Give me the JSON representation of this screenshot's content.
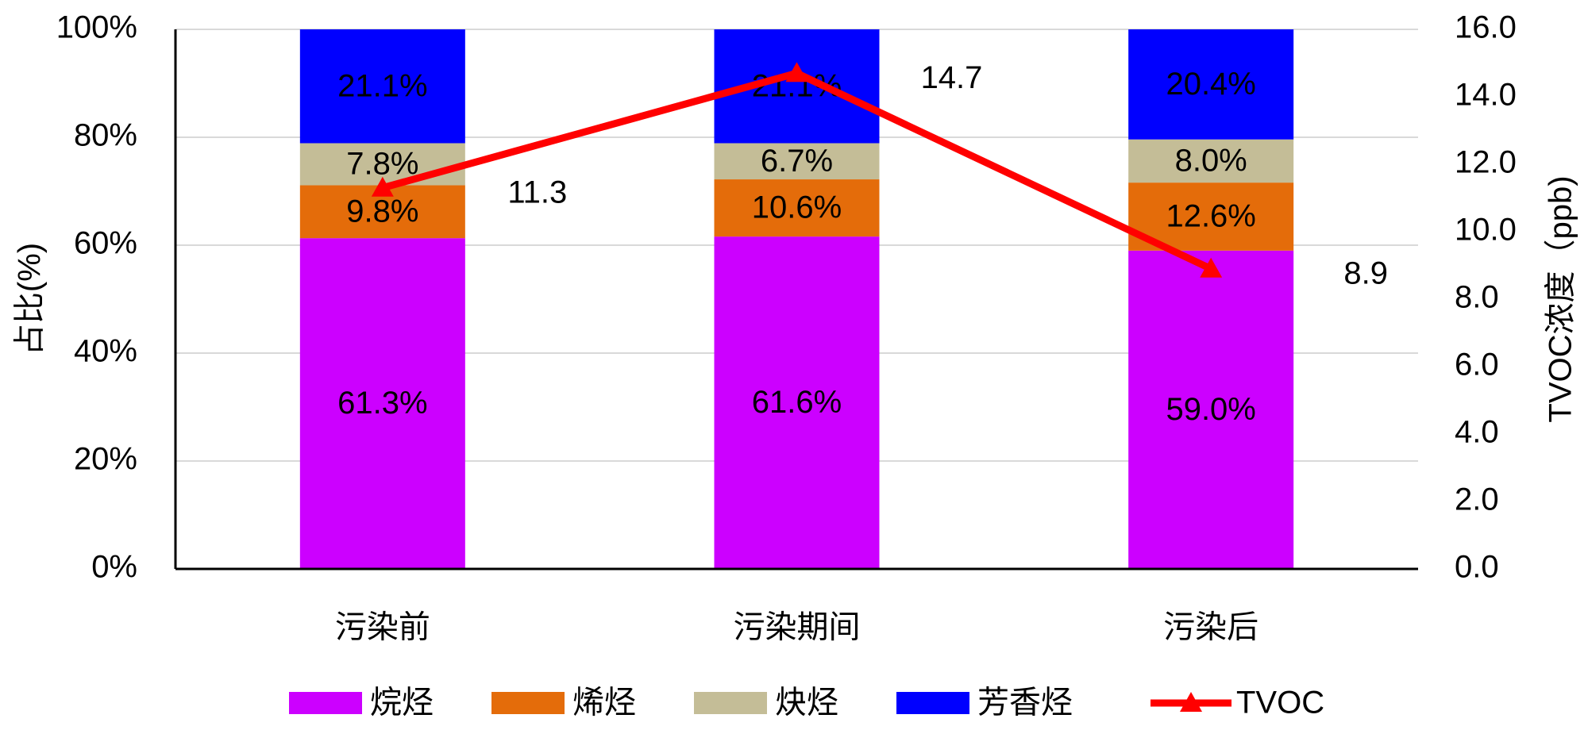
{
  "chart_data": {
    "type": "bar",
    "stacked": true,
    "grid": true,
    "legend": "bottom",
    "ylabel": "占比(%)",
    "y2label": "TVOC浓度（ppb)",
    "categories": [
      "污染前",
      "污染期间",
      "污染后"
    ],
    "ylim": [
      0,
      100
    ],
    "yticks": [
      {
        "value": 0,
        "label": "0%"
      },
      {
        "value": 20,
        "label": "20%"
      },
      {
        "value": 40,
        "label": "40%"
      },
      {
        "value": 60,
        "label": "60%"
      },
      {
        "value": 80,
        "label": "80%"
      },
      {
        "value": 100,
        "label": "100%"
      }
    ],
    "y2lim": [
      0,
      16
    ],
    "y2ticks": [
      {
        "value": 0,
        "label": "0.0"
      },
      {
        "value": 2,
        "label": "2.0"
      },
      {
        "value": 4,
        "label": "4.0"
      },
      {
        "value": 6,
        "label": "6.0"
      },
      {
        "value": 8,
        "label": "8.0"
      },
      {
        "value": 10,
        "label": "10.0"
      },
      {
        "value": 12,
        "label": "12.0"
      },
      {
        "value": 14,
        "label": "14.0"
      },
      {
        "value": 16,
        "label": "16.0"
      }
    ],
    "series": [
      {
        "name": "烷烃",
        "color": "#cc00ff",
        "values": [
          61.3,
          61.6,
          59.0
        ],
        "value_labels": [
          "61.3%",
          "61.6%",
          "59.0%"
        ]
      },
      {
        "name": "烯烃",
        "color": "#e46c0a",
        "values": [
          9.8,
          10.6,
          12.6
        ],
        "value_labels": [
          "9.8%",
          "10.6%",
          "12.6%"
        ]
      },
      {
        "name": "炔烃",
        "color": "#c4bd97",
        "values": [
          7.8,
          6.7,
          8.0
        ],
        "value_labels": [
          "7.8%",
          "6.7%",
          "8.0%"
        ]
      },
      {
        "name": "芳香烃",
        "color": "#0000ff",
        "values": [
          21.1,
          21.1,
          20.4
        ],
        "value_labels": [
          "21.1%",
          "21.1%",
          "20.4%"
        ]
      },
      {
        "name": "TVOC",
        "type": "line",
        "axis": "y2",
        "color": "#ff0000",
        "values": [
          11.3,
          14.7,
          8.9
        ]
      }
    ]
  }
}
